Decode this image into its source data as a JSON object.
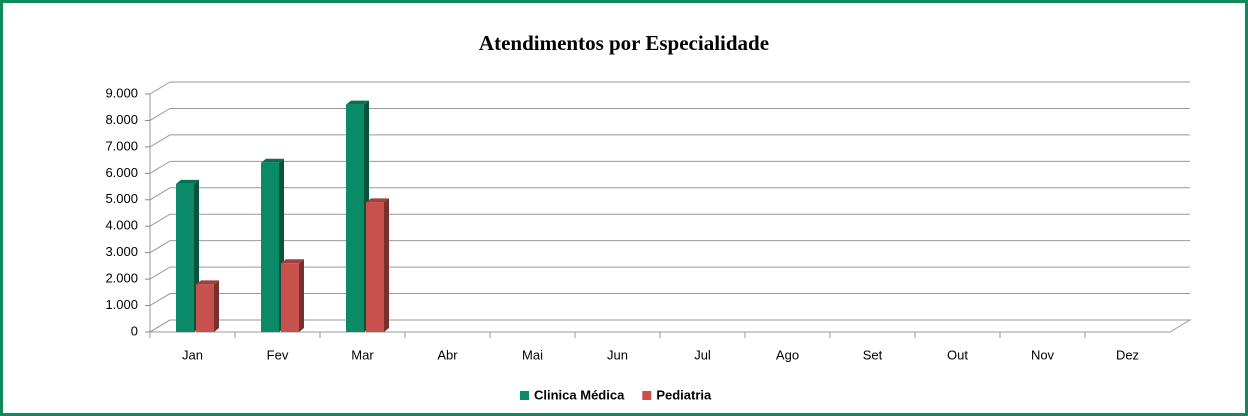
{
  "chart_data": {
    "type": "bar3d",
    "title": "Atendimentos  por Especialidade",
    "categories": [
      "Jan",
      "Fev",
      "Mar",
      "Abr",
      "Mai",
      "Jun",
      "Jul",
      "Ago",
      "Set",
      "Out",
      "Nov",
      "Dez"
    ],
    "series": [
      {
        "name": "Clinica Médica",
        "color": "#0b8a68",
        "values": [
          5600,
          6400,
          8600,
          null,
          null,
          null,
          null,
          null,
          null,
          null,
          null,
          null
        ]
      },
      {
        "name": "Pediatria",
        "color": "#c8504d",
        "values": [
          1800,
          2600,
          4900,
          null,
          null,
          null,
          null,
          null,
          null,
          null,
          null,
          null
        ]
      }
    ],
    "ylim": [
      0,
      9000
    ],
    "yticks": [
      0,
      {
        "value": 1000,
        "label": "1.000"
      },
      {
        "value": 2000,
        "label": "2.000"
      },
      {
        "value": 3000,
        "label": "3.000"
      },
      {
        "value": 4000,
        "label": "4.000"
      },
      {
        "value": 5000,
        "label": "5.000"
      },
      {
        "value": 6000,
        "label": "6.000"
      },
      {
        "value": 7000,
        "label": "7.000"
      },
      {
        "value": 8000,
        "label": "8.000"
      },
      {
        "value": 9000,
        "label": "9.000"
      }
    ],
    "grid": true,
    "legend": "bottom"
  }
}
